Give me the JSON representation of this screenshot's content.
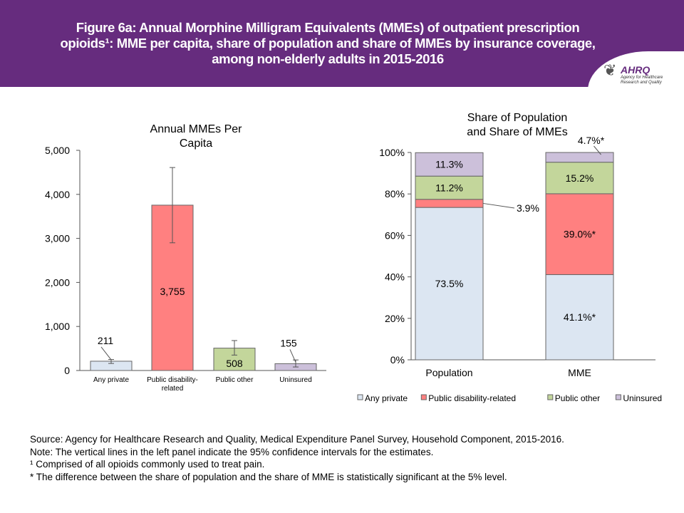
{
  "title": "Figure 6a: Annual Morphine Milligram Equivalents (MMEs) of outpatient prescription opioids¹: MME per capita, share of population and share of MMEs by insurance coverage, among non-elderly adults in 2015-2016",
  "logo": {
    "name": "AHRQ",
    "subtitle": "Agency for Healthcare Research and Quality"
  },
  "colors": {
    "Any private": "#dce6f2",
    "Public disability-related": "#ff8080",
    "Public other": "#c3d69b",
    "Uninsured": "#ccc0da"
  },
  "chart_data": [
    {
      "type": "bar",
      "title": "Annual MMEs Per Capita",
      "categories": [
        "Any private",
        "Public disability-related",
        "Public other",
        "Uninsured"
      ],
      "values": [
        211,
        3755,
        508,
        155
      ],
      "labels": [
        "211",
        "3,755",
        "508",
        "155"
      ],
      "ci": [
        [
          160,
          250
        ],
        [
          2900,
          4610
        ],
        [
          350,
          680
        ],
        [
          80,
          240
        ]
      ],
      "ylim": [
        0,
        5000
      ],
      "yticks": [
        "0",
        "1,000",
        "2,000",
        "3,000",
        "4,000",
        "5,000"
      ],
      "grid": false
    },
    {
      "type": "bar",
      "stacked": true,
      "title": "Share of Population and Share of MMEs",
      "categories": [
        "Population",
        "MME"
      ],
      "series": [
        {
          "name": "Any private",
          "values": [
            73.5,
            41.1
          ],
          "labels": [
            "73.5%",
            "41.1%*"
          ]
        },
        {
          "name": "Public disability-related",
          "values": [
            3.9,
            39.0
          ],
          "labels": [
            "3.9%",
            "39.0%*"
          ]
        },
        {
          "name": "Public other",
          "values": [
            11.2,
            15.2
          ],
          "labels": [
            "11.2%",
            "15.2%"
          ]
        },
        {
          "name": "Uninsured",
          "values": [
            11.3,
            4.7
          ],
          "labels": [
            "11.3%",
            "4.7%*"
          ]
        }
      ],
      "ylim": [
        0,
        100
      ],
      "yticks": [
        "0%",
        "20%",
        "40%",
        "60%",
        "80%",
        "100%"
      ],
      "legend": "bottom"
    }
  ],
  "notes": [
    "Source: Agency for Healthcare Research and Quality, Medical Expenditure Panel Survey, Household Component, 2015-2016.",
    "Note: The vertical lines in the left panel indicate the 95% confidence intervals for the estimates.",
    "¹ Comprised of all opioids commonly used to treat pain.",
    "* The difference between the share of population and the share of MME is statistically significant at the 5% level."
  ]
}
